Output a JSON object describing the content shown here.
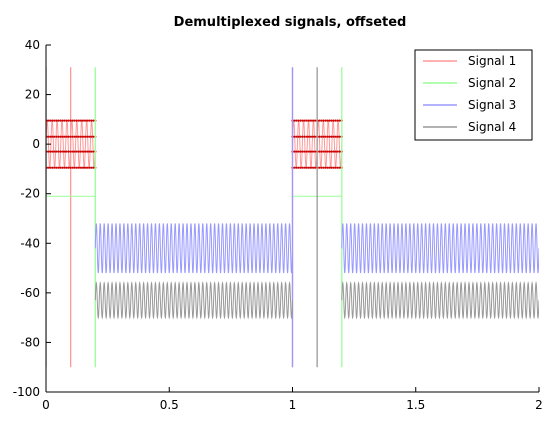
{
  "chart_data": {
    "type": "line",
    "title": "Demultiplexed signals, offseted",
    "xlabel": "",
    "ylabel": "",
    "xlim": [
      0,
      2
    ],
    "ylim": [
      -100,
      40
    ],
    "xticks": [
      0,
      0.5,
      1,
      1.5,
      2
    ],
    "xtick_labels": [
      "0",
      "0.5",
      "1",
      "1.5",
      "2"
    ],
    "yticks": [
      -100,
      -80,
      -60,
      -40,
      -20,
      0,
      20,
      40
    ],
    "ytick_labels": [
      "-100",
      "-80",
      "-60",
      "-40",
      "-20",
      "0",
      "20",
      "40"
    ],
    "grid": false,
    "legend_position": "top-right",
    "series": [
      {
        "name": "Signal 1",
        "color": "#ff9999",
        "description": "square-like oscillation between about -9 and 9 during 0-0.2 and 1.0-1.2, with red dot markers",
        "segments": [
          {
            "x_start": 0.0,
            "x_end": 0.2,
            "center": 0,
            "amplitude": 9.5,
            "cycles": 10
          },
          {
            "x_start": 1.0,
            "x_end": 1.2,
            "center": 0,
            "amplitude": 9.5,
            "cycles": 10
          }
        ],
        "marker_levels": [
          9.5,
          3,
          -3,
          -9.5
        ],
        "marker_color": "#cc0000",
        "spikes": [
          {
            "x": 0.1,
            "y_from": -90,
            "y_to": 31
          },
          {
            "x": 1.0,
            "y_from": -90,
            "y_to": 31
          }
        ]
      },
      {
        "name": "Signal 2",
        "color": "#99ff99",
        "description": "flat at about -21 during 0-0.2 and 1.0-1.2",
        "segments": [
          {
            "x_start": 0.0,
            "x_end": 0.2,
            "center": -21,
            "amplitude": 0
          },
          {
            "x_start": 1.0,
            "x_end": 1.2,
            "center": -21,
            "amplitude": 0
          }
        ],
        "spikes": [
          {
            "x": 0.2,
            "y_from": -90,
            "y_to": 31
          },
          {
            "x": 1.2,
            "y_from": -90,
            "y_to": 31
          }
        ]
      },
      {
        "name": "Signal 3",
        "color": "#9999ff",
        "description": "sinusoid centered about -42 amplitude 10 during 0.2-1.0 and 1.2-2.0",
        "segments": [
          {
            "x_start": 0.2,
            "x_end": 1.0,
            "center": -42,
            "amplitude": 10,
            "cycles": 50
          },
          {
            "x_start": 1.2,
            "x_end": 2.0,
            "center": -42,
            "amplitude": 10,
            "cycles": 50
          }
        ],
        "spikes": [
          {
            "x": 1.0,
            "y_from": -90,
            "y_to": 31
          }
        ]
      },
      {
        "name": "Signal 4",
        "color": "#999999",
        "description": "sinusoid centered about -63 amplitude 7 during 0.2-1.0 and 1.2-2.0",
        "segments": [
          {
            "x_start": 0.2,
            "x_end": 1.0,
            "center": -63,
            "amplitude": 7,
            "cycles": 50
          },
          {
            "x_start": 1.2,
            "x_end": 2.0,
            "center": -63,
            "amplitude": 7,
            "cycles": 50
          }
        ],
        "spikes": [
          {
            "x": 1.1,
            "y_from": -90,
            "y_to": 31
          },
          {
            "x": 0.0,
            "y_from": -90,
            "y_to": 31
          }
        ]
      }
    ]
  }
}
